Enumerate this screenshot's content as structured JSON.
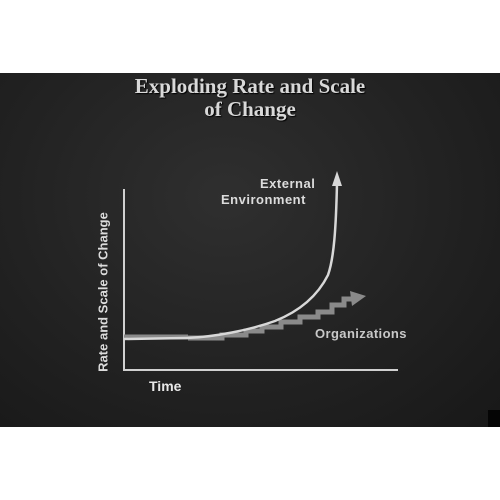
{
  "slide": {
    "title_line1": "Exploding Rate and Scale",
    "title_line2": "of Change",
    "y_axis_label": "Rate and Scale of Change",
    "x_axis_label": "Time",
    "curves": [
      {
        "label_line1": "External",
        "label_line2": "Environment",
        "shape": "exponential",
        "arrow": true
      },
      {
        "label": "Organizations",
        "shape": "stepped-linear",
        "arrow": true
      }
    ],
    "colors": {
      "slide_background": "#242424",
      "text": "#dcdcdc",
      "environment_curve": "#d8d8d8",
      "organizations_steps": "#8a8a8a"
    }
  }
}
